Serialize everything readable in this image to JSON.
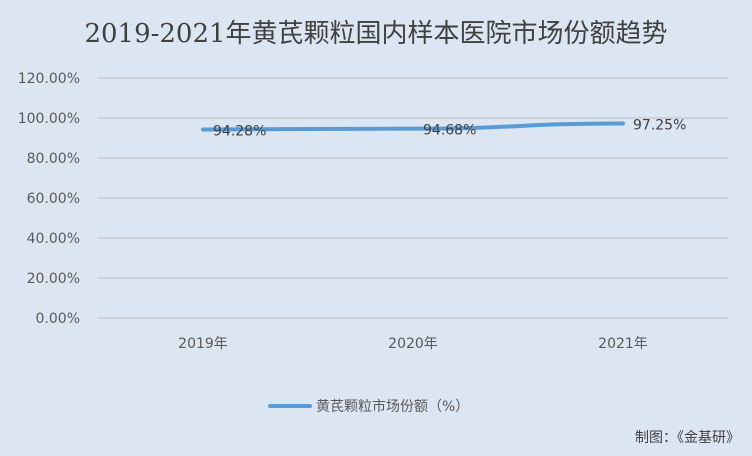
{
  "chart_data": {
    "type": "line",
    "title": "2019-2021年黄芪颗粒国内样本医院市场份额趋势",
    "categories": [
      "2019年",
      "2020年",
      "2021年"
    ],
    "series": [
      {
        "name": "黄芪颗粒市场份额（%）",
        "values": [
          94.28,
          94.68,
          97.25
        ],
        "labels": [
          "94.28%",
          "94.68%",
          "97.25%"
        ],
        "color": "#5b9bd5"
      }
    ],
    "yticks": [
      "0.00%",
      "20.00%",
      "40.00%",
      "60.00%",
      "80.00%",
      "100.00%",
      "120.00%"
    ],
    "ylim": [
      0,
      120
    ],
    "grid": true,
    "legend": "bottom",
    "source_note": "制图：《金基研》"
  }
}
